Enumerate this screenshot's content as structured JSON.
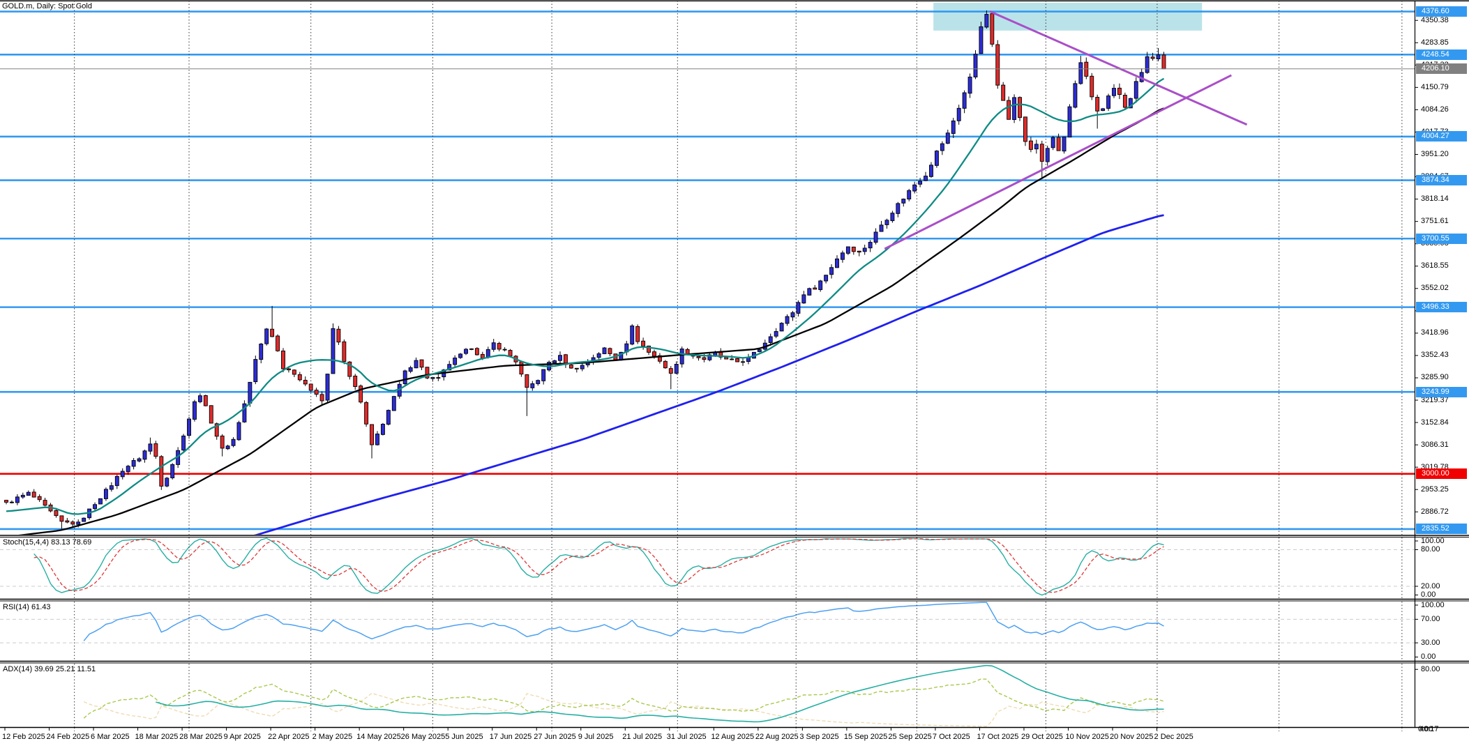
{
  "window": {
    "title": "GOLD.m, Daily: Spot Gold"
  },
  "colors": {
    "level_line": "#3399F0",
    "alert_line": "#F00000",
    "current_line": "#808080",
    "up": "#2C2CD8",
    "down": "#E22A2A",
    "wick": "#000000",
    "ma_fast": "#0E8B84",
    "ma_mid": "#000000",
    "ma_slow": "#2020EE",
    "trendline": "#A94FC8",
    "zone": "#B9E3E9",
    "stoch_k": "#25AFA3",
    "stoch_d": "#E03535",
    "rsi": "#4DA0F2",
    "adx": "#25AFA3",
    "plus_di": "#A8C94C",
    "minus_di": "#EFDBB2",
    "grid_dash": "#CCCCCC",
    "separator": "#333333"
  },
  "chart_data": {
    "type": "candlestick",
    "symbol": "GOLD.m",
    "timeframe": "Daily",
    "description": "Spot Gold",
    "bars": 210,
    "current_price": "4206.10",
    "price_axis": {
      "ticks": [
        "4350.38",
        "4283.85",
        "4217.32",
        "4150.79",
        "4084.26",
        "4017.73",
        "3951.20",
        "3884.67",
        "3818.14",
        "3751.61",
        "3685.08",
        "3618.55",
        "3552.02",
        "3485.49",
        "3418.96",
        "3352.43",
        "3285.90",
        "3219.37",
        "3152.84",
        "3086.31",
        "3019.78",
        "2953.25",
        "2886.72"
      ],
      "badges": [
        {
          "label": "4376.60",
          "kind": "level"
        },
        {
          "label": "4248.54",
          "kind": "level"
        },
        {
          "label": "4004.27",
          "kind": "level"
        },
        {
          "label": "3874.34",
          "kind": "level"
        },
        {
          "label": "3700.55",
          "kind": "level"
        },
        {
          "label": "3496.33",
          "kind": "level"
        },
        {
          "label": "3243.99",
          "kind": "level"
        },
        {
          "label": "2835.52",
          "kind": "level"
        },
        {
          "label": "3000.00",
          "kind": "alert"
        },
        {
          "label": "4206.10",
          "kind": "current"
        }
      ]
    },
    "dates": [
      "12 Feb 2025",
      "24 Feb 2025",
      "6 Mar 2025",
      "18 Mar 2025",
      "28 Mar 2025",
      "9 Apr 2025",
      "22 Apr 2025",
      "2 May 2025",
      "14 May 2025",
      "26 May 2025",
      "5 Jun 2025",
      "17 Jun 2025",
      "27 Jun 2025",
      "9 Jul 2025",
      "21 Jul 2025",
      "31 Jul 2025",
      "12 Aug 2025",
      "22 Aug 2025",
      "3 Sep 2025",
      "15 Sep 2025",
      "25 Sep 2025",
      "7 Oct 2025",
      "17 Oct 2025",
      "29 Oct 2025",
      "10 Nov 2025",
      "20 Nov 2025",
      "2 Dec 2025"
    ],
    "bars_per_label": 8,
    "month_separator_bars": [
      12.3,
      33,
      55,
      77,
      98.5,
      121.2,
      142.6,
      164.4,
      187.7,
      207.8,
      229.8,
      252
    ],
    "close_keypoints": [
      [
        0,
        2912
      ],
      [
        2,
        2928
      ],
      [
        4,
        2942
      ],
      [
        6,
        2918
      ],
      [
        8,
        2886
      ],
      [
        10,
        2856
      ],
      [
        13,
        2852
      ],
      [
        16,
        2912
      ],
      [
        19,
        2968
      ],
      [
        21,
        3012
      ],
      [
        24,
        3048
      ],
      [
        26,
        3088
      ],
      [
        27,
        3052
      ],
      [
        28,
        2968
      ],
      [
        29,
        2992
      ],
      [
        31,
        3068
      ],
      [
        32,
        3118
      ],
      [
        34,
        3212
      ],
      [
        35,
        3238
      ],
      [
        37,
        3156
      ],
      [
        39,
        3072
      ],
      [
        41,
        3102
      ],
      [
        43,
        3208
      ],
      [
        45,
        3338
      ],
      [
        47,
        3432
      ],
      [
        48,
        3412
      ],
      [
        50,
        3318
      ],
      [
        52,
        3302
      ],
      [
        54,
        3262
      ],
      [
        56,
        3242
      ],
      [
        57,
        3218
      ],
      [
        58,
        3298
      ],
      [
        59,
        3428
      ],
      [
        60,
        3392
      ],
      [
        61,
        3332
      ],
      [
        63,
        3256
      ],
      [
        64,
        3212
      ],
      [
        65,
        3146
      ],
      [
        66,
        3082
      ],
      [
        68,
        3152
      ],
      [
        70,
        3226
      ],
      [
        72,
        3302
      ],
      [
        74,
        3342
      ],
      [
        76,
        3288
      ],
      [
        78,
        3282
      ],
      [
        80,
        3328
      ],
      [
        82,
        3352
      ],
      [
        84,
        3378
      ],
      [
        86,
        3342
      ],
      [
        88,
        3388
      ],
      [
        90,
        3366
      ],
      [
        92,
        3336
      ],
      [
        94,
        3252
      ],
      [
        96,
        3282
      ],
      [
        98,
        3332
      ],
      [
        100,
        3348
      ],
      [
        102,
        3312
      ],
      [
        104,
        3322
      ],
      [
        106,
        3348
      ],
      [
        108,
        3372
      ],
      [
        110,
        3342
      ],
      [
        112,
        3392
      ],
      [
        113,
        3436
      ],
      [
        114,
        3398
      ],
      [
        116,
        3362
      ],
      [
        118,
        3338
      ],
      [
        120,
        3296
      ],
      [
        122,
        3368
      ],
      [
        124,
        3352
      ],
      [
        126,
        3342
      ],
      [
        128,
        3358
      ],
      [
        130,
        3338
      ],
      [
        132,
        3334
      ],
      [
        134,
        3342
      ],
      [
        136,
        3372
      ],
      [
        138,
        3412
      ],
      [
        140,
        3448
      ],
      [
        142,
        3482
      ],
      [
        144,
        3538
      ],
      [
        146,
        3556
      ],
      [
        148,
        3592
      ],
      [
        150,
        3642
      ],
      [
        152,
        3678
      ],
      [
        154,
        3658
      ],
      [
        156,
        3692
      ],
      [
        158,
        3742
      ],
      [
        160,
        3782
      ],
      [
        162,
        3822
      ],
      [
        164,
        3862
      ],
      [
        166,
        3892
      ],
      [
        168,
        3958
      ],
      [
        170,
        4012
      ],
      [
        172,
        4092
      ],
      [
        174,
        4178
      ],
      [
        175,
        4252
      ],
      [
        176,
        4338
      ],
      [
        177,
        4362
      ],
      [
        178,
        4282
      ],
      [
        179,
        4152
      ],
      [
        180,
        4112
      ],
      [
        181,
        4062
      ],
      [
        182,
        4128
      ],
      [
        183,
        4058
      ],
      [
        184,
        3992
      ],
      [
        185,
        3962
      ],
      [
        186,
        3982
      ],
      [
        187,
        3932
      ],
      [
        188,
        3972
      ],
      [
        189,
        3996
      ],
      [
        190,
        3962
      ],
      [
        191,
        4002
      ],
      [
        192,
        4092
      ],
      [
        193,
        4158
      ],
      [
        194,
        4218
      ],
      [
        195,
        4178
      ],
      [
        196,
        4122
      ],
      [
        197,
        4082
      ],
      [
        198,
        4092
      ],
      [
        199,
        4122
      ],
      [
        200,
        4148
      ],
      [
        201,
        4128
      ],
      [
        202,
        4088
      ],
      [
        203,
        4122
      ],
      [
        204,
        4162
      ],
      [
        205,
        4198
      ],
      [
        206,
        4242
      ],
      [
        207,
        4236
      ],
      [
        208,
        4246
      ],
      [
        209,
        4206.1
      ]
    ],
    "spike_highs": [
      [
        26,
        3108
      ],
      [
        48,
        3500
      ],
      [
        59,
        3448
      ],
      [
        113,
        3446
      ],
      [
        177,
        4380
      ],
      [
        194,
        4245
      ],
      [
        208,
        4268
      ]
    ],
    "spike_lows": [
      [
        10,
        2836
      ],
      [
        28,
        2952
      ],
      [
        39,
        3052
      ],
      [
        66,
        3046
      ],
      [
        94,
        3172
      ],
      [
        120,
        3252
      ],
      [
        187,
        3878
      ],
      [
        197,
        4028
      ]
    ],
    "moving_averages": {
      "fast_keypoints": [
        [
          0,
          2888
        ],
        [
          8,
          2902
        ],
        [
          12,
          2878
        ],
        [
          16,
          2886
        ],
        [
          20,
          2928
        ],
        [
          24,
          2978
        ],
        [
          28,
          3022
        ],
        [
          32,
          3062
        ],
        [
          36,
          3128
        ],
        [
          40,
          3158
        ],
        [
          44,
          3208
        ],
        [
          48,
          3288
        ],
        [
          52,
          3328
        ],
        [
          56,
          3340
        ],
        [
          60,
          3338
        ],
        [
          63,
          3318
        ],
        [
          66,
          3268
        ],
        [
          70,
          3242
        ],
        [
          74,
          3282
        ],
        [
          78,
          3302
        ],
        [
          82,
          3322
        ],
        [
          86,
          3344
        ],
        [
          90,
          3356
        ],
        [
          94,
          3328
        ],
        [
          98,
          3318
        ],
        [
          102,
          3330
        ],
        [
          106,
          3336
        ],
        [
          110,
          3348
        ],
        [
          114,
          3380
        ],
        [
          118,
          3372
        ],
        [
          122,
          3356
        ],
        [
          126,
          3352
        ],
        [
          130,
          3350
        ],
        [
          134,
          3344
        ],
        [
          138,
          3372
        ],
        [
          142,
          3422
        ],
        [
          146,
          3478
        ],
        [
          150,
          3542
        ],
        [
          154,
          3608
        ],
        [
          158,
          3654
        ],
        [
          162,
          3712
        ],
        [
          166,
          3782
        ],
        [
          170,
          3862
        ],
        [
          174,
          3958
        ],
        [
          178,
          4058
        ],
        [
          181,
          4098
        ],
        [
          184,
          4102
        ],
        [
          187,
          4078
        ],
        [
          190,
          4052
        ],
        [
          193,
          4048
        ],
        [
          196,
          4068
        ],
        [
          199,
          4072
        ],
        [
          202,
          4082
        ],
        [
          205,
          4122
        ],
        [
          209,
          4182
        ]
      ],
      "mid_keypoints": [
        [
          0,
          2812
        ],
        [
          10,
          2832
        ],
        [
          20,
          2878
        ],
        [
          32,
          2952
        ],
        [
          44,
          3058
        ],
        [
          56,
          3198
        ],
        [
          64,
          3252
        ],
        [
          76,
          3295
        ],
        [
          90,
          3322
        ],
        [
          104,
          3330
        ],
        [
          120,
          3352
        ],
        [
          136,
          3372
        ],
        [
          148,
          3448
        ],
        [
          160,
          3560
        ],
        [
          172,
          3700
        ],
        [
          180,
          3798
        ],
        [
          184,
          3852
        ],
        [
          192,
          3928
        ],
        [
          200,
          4008
        ],
        [
          205,
          4052
        ],
        [
          209,
          4092
        ]
      ],
      "slow_keypoints": [
        [
          44,
          2812
        ],
        [
          56,
          2872
        ],
        [
          68,
          2928
        ],
        [
          80,
          2982
        ],
        [
          92,
          3042
        ],
        [
          104,
          3102
        ],
        [
          116,
          3172
        ],
        [
          128,
          3242
        ],
        [
          140,
          3318
        ],
        [
          152,
          3398
        ],
        [
          164,
          3482
        ],
        [
          176,
          3562
        ],
        [
          188,
          3648
        ],
        [
          198,
          3718
        ],
        [
          209,
          3772
        ]
      ]
    },
    "supply_zone": {
      "from_bar": 167.4,
      "to_bar": 215.9,
      "price_low": 4320,
      "price_high": 4403
    },
    "trendlines": [
      {
        "name": "descending",
        "x1_bar": 177.6,
        "price1": 4377,
        "x2_bar": 224,
        "price2": 4040
      },
      {
        "name": "ascending",
        "x1_bar": 158.6,
        "price1": 3670,
        "x2_bar": 221.2,
        "price2": 4187
      }
    ],
    "indicators": {
      "stoch": {
        "label": "Stoch(15,4,4) 83.13 78.69",
        "k_period": 15,
        "slowing": 4,
        "d_period": 4,
        "levels": [
          80,
          20
        ],
        "scale_labels": [
          "100.00",
          "80.00",
          "20.00",
          "0.00"
        ]
      },
      "rsi": {
        "label": "RSI(14) 61.43",
        "period": 14,
        "levels": [
          70,
          30
        ],
        "scale_labels": [
          "100.00",
          "70.00",
          "30.00",
          "0.00"
        ]
      },
      "adx": {
        "label": "ADX(14) 39.69 25.21 11.51",
        "period": 14,
        "scale_max": 88,
        "scale_labels": [
          "80.00"
        ]
      }
    },
    "corner_labels": [
      "0.00",
      "40.17"
    ]
  }
}
